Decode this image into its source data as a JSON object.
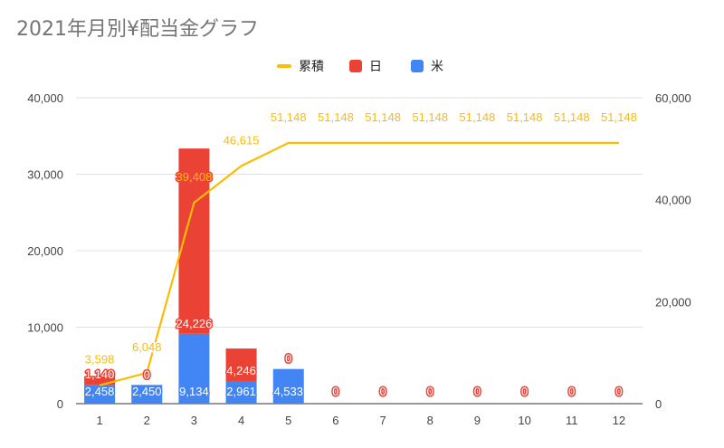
{
  "chart_data": {
    "type": "bar",
    "title": "2021年月別¥配当金グラフ",
    "categories": [
      "1",
      "2",
      "3",
      "4",
      "5",
      "6",
      "7",
      "8",
      "9",
      "10",
      "11",
      "12"
    ],
    "series": [
      {
        "name": "米",
        "kind": "bar",
        "axis": "left",
        "color": "#4285f4",
        "values": [
          2458,
          2450,
          9134,
          2961,
          4533,
          0,
          0,
          0,
          0,
          0,
          0,
          0
        ],
        "labels": [
          "2,458",
          "2,450",
          "9,134",
          "2,961",
          "4,533",
          "0",
          "0",
          "0",
          "0",
          "0",
          "0",
          "0"
        ]
      },
      {
        "name": "日",
        "kind": "bar",
        "axis": "left",
        "color": "#ea4335",
        "values": [
          1140,
          0,
          24226,
          4246,
          0,
          0,
          0,
          0,
          0,
          0,
          0,
          0
        ],
        "labels": [
          "1,140",
          "0",
          "24,226",
          "4,246",
          "0",
          "",
          "",
          "",
          "",
          "",
          "",
          ""
        ]
      },
      {
        "name": "累積",
        "kind": "line",
        "axis": "right",
        "color": "#fbbc04",
        "values": [
          3598,
          6048,
          39408,
          46615,
          51148,
          51148,
          51148,
          51148,
          51148,
          51148,
          51148,
          51148
        ],
        "labels": [
          "3,598",
          "6,048",
          "39,408",
          "46,615",
          "51,148",
          "51,148",
          "51,148",
          "51,148",
          "51,148",
          "51,148",
          "51,148",
          "51,148"
        ]
      }
    ],
    "left_axis": {
      "ylim": [
        0,
        40000
      ],
      "ticks": [
        0,
        10000,
        20000,
        30000,
        40000
      ],
      "tick_labels": [
        "0",
        "10,000",
        "20,000",
        "30,000",
        "40,000"
      ]
    },
    "right_axis": {
      "ylim": [
        0,
        60000
      ],
      "ticks": [
        0,
        20000,
        40000,
        60000
      ],
      "tick_labels": [
        "0",
        "20,000",
        "40,000",
        "60,000"
      ]
    },
    "legend_position": "top",
    "grid": true
  }
}
